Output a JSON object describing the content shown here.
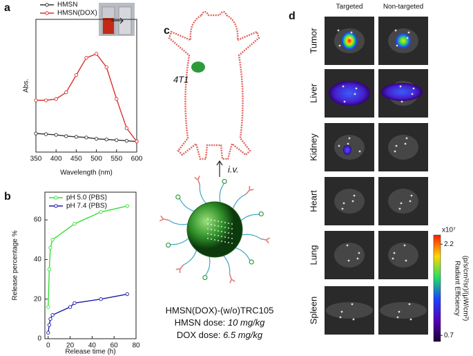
{
  "chart_data": [
    {
      "type": "line",
      "panel": "a",
      "xlabel": "Wavelength (nm)",
      "ylabel": "Abs.",
      "legend": "upper left",
      "xlim": [
        350,
        600
      ],
      "xticks": [
        350,
        400,
        450,
        500,
        550,
        600
      ],
      "ylim": [
        0,
        1
      ],
      "series": [
        {
          "name": "HMSN",
          "color": "#333333",
          "x": [
            350,
            375,
            400,
            425,
            450,
            475,
            500,
            525,
            550,
            575,
            600
          ],
          "values": [
            0.14,
            0.135,
            0.13,
            0.12,
            0.115,
            0.11,
            0.1,
            0.095,
            0.09,
            0.085,
            0.08
          ]
        },
        {
          "name": "HMSN(DOX)",
          "color": "#d9302c",
          "x": [
            350,
            375,
            400,
            425,
            450,
            475,
            500,
            525,
            550,
            575,
            600
          ],
          "values": [
            0.39,
            0.39,
            0.4,
            0.45,
            0.58,
            0.71,
            0.74,
            0.64,
            0.4,
            0.18,
            0.08
          ]
        }
      ]
    },
    {
      "type": "line",
      "panel": "b",
      "xlabel": "Release time (h)",
      "ylabel": "Release percentage %",
      "legend": "upper left",
      "xlim": [
        -3,
        80
      ],
      "xticks": [
        0,
        20,
        40,
        60,
        80
      ],
      "ylim": [
        0,
        74
      ],
      "yticks": [
        0,
        20,
        40,
        60
      ],
      "series": [
        {
          "name": "pH 5.0 (PBS)",
          "color": "#33dd33",
          "x": [
            0,
            1,
            2,
            4,
            24,
            48,
            72
          ],
          "values": [
            16,
            35,
            46,
            50,
            58,
            64,
            67
          ]
        },
        {
          "name": "pH 7.4 (PBS)",
          "color": "#1a1aa6",
          "x": [
            0,
            1,
            2,
            4,
            20,
            24,
            48,
            72
          ],
          "values": [
            3,
            7,
            10,
            12,
            16,
            18,
            20,
            22.5
          ]
        }
      ]
    }
  ],
  "panel_c": {
    "label": "c",
    "tumor_label": "4T1",
    "route": "i.v.",
    "formulation": "HMSN(DOX)-(w/o)TRC105",
    "dose_lines": [
      {
        "name": "HMSN dose:",
        "value": "10 mg/kg"
      },
      {
        "name": "DOX dose:",
        "value": "6.5 mg/kg"
      }
    ]
  },
  "panel_d": {
    "label": "d",
    "columns": [
      "Targeted",
      "Non-targeted"
    ],
    "rows": [
      "Tumor",
      "Liver",
      "Kidney",
      "Heart",
      "Lung",
      "Spleen"
    ],
    "colorbar": {
      "multiplier": "x10⁷",
      "label": [
        "Radiant Efficiency",
        "(p/s/cm²/sr)/(μW/cm²)"
      ],
      "lim": [
        0.6,
        2.35
      ],
      "ticks": [
        2.2,
        0.7
      ]
    }
  }
}
